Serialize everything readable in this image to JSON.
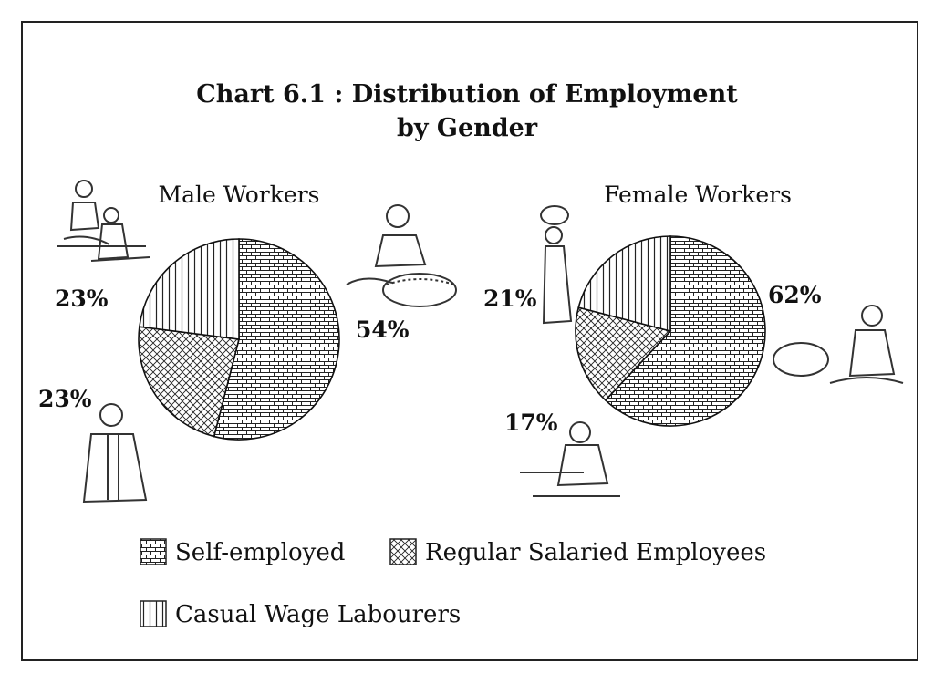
{
  "chart_data": [
    {
      "type": "pie",
      "title": "Chart 6.1 : Distribution of Employment by Gender",
      "title_lines": [
        "Chart 6.1 : Distribution of Employment",
        "by Gender"
      ],
      "subtitle": "Male Workers",
      "slices": [
        {
          "label": "Self-employed",
          "value": 54,
          "display": "54%",
          "pattern": "brick"
        },
        {
          "label": "Regular Salaried Employees",
          "value": 23,
          "display": "23%",
          "pattern": "crosshatch"
        },
        {
          "label": "Casual Wage Labourers",
          "value": 23,
          "display": "23%",
          "pattern": "vertical"
        }
      ]
    },
    {
      "type": "pie",
      "subtitle": "Female Workers",
      "slices": [
        {
          "label": "Self-employed",
          "value": 62,
          "display": "62%",
          "pattern": "brick"
        },
        {
          "label": "Regular Salaried Employees",
          "value": 17,
          "display": "17%",
          "pattern": "crosshatch"
        },
        {
          "label": "Casual Wage Labourers",
          "value": 21,
          "display": "21%",
          "pattern": "vertical"
        }
      ]
    }
  ],
  "legend": [
    {
      "label": "Self-employed",
      "pattern": "brick"
    },
    {
      "label": "Regular Salaried Employees",
      "pattern": "crosshatch"
    },
    {
      "label": "Casual Wage Labourers",
      "pattern": "vertical"
    }
  ],
  "colors": {
    "ink": "#111111",
    "background": "#ffffff"
  }
}
